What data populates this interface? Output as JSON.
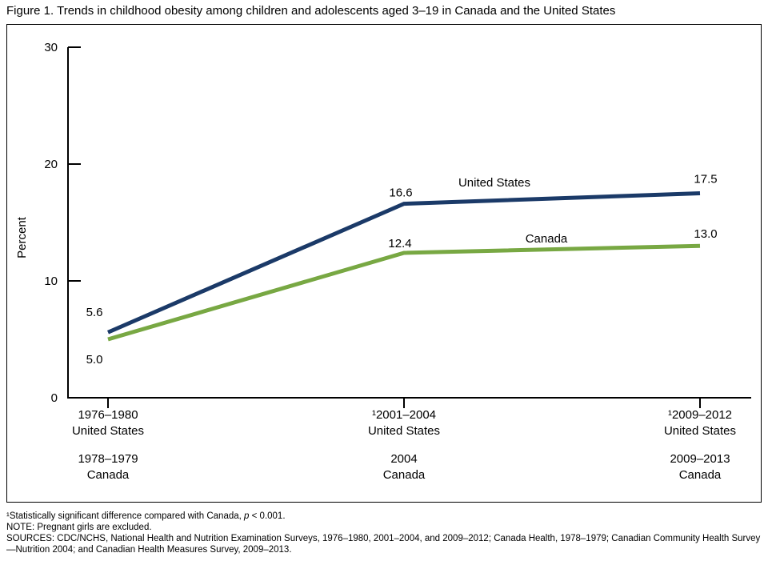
{
  "figure_title": "Figure 1. Trends in childhood obesity among children and adolescents aged 3–19 in Canada and the United States",
  "chart_data": {
    "type": "line",
    "title": "Trends in childhood obesity among children and adolescents aged 3–19 in Canada and the United States",
    "ylabel": "Percent",
    "ylim": [
      0,
      30
    ],
    "yticks": [
      0,
      10,
      20,
      30
    ],
    "grid": false,
    "legend_position": "inline-labels",
    "series": [
      {
        "name": "United States",
        "color": "#1b3a68",
        "values": [
          5.6,
          16.6,
          17.5
        ],
        "point_labels": [
          "5.6",
          "16.6",
          "17.5"
        ]
      },
      {
        "name": "Canada",
        "color": "#78a843",
        "values": [
          5.0,
          12.4,
          13.0
        ],
        "point_labels": [
          "5.0",
          "12.4",
          "13.0"
        ]
      }
    ],
    "x_tick_labels": [
      {
        "us": [
          "1976–1980",
          "United States"
        ],
        "canada": [
          "1978–1979",
          "Canada"
        ]
      },
      {
        "us": [
          "¹2001–2004",
          "United States"
        ],
        "canada": [
          "2004",
          "Canada"
        ]
      },
      {
        "us": [
          "¹2009–2012",
          "United States"
        ],
        "canada": [
          "2009–2013",
          "Canada"
        ]
      }
    ]
  },
  "footnotes": {
    "significance_prefix": "¹Statistically significant difference compared with Canada, ",
    "significance_p": "p",
    "significance_tail": " < 0.001.",
    "note": "NOTE: Pregnant girls are excluded.",
    "sources": "SOURCES: CDC/NCHS, National Health and Nutrition Examination Surveys, 1976–1980, 2001–2004, and 2009–2012; Canada Health, 1978–1979; Canadian Community Health Survey—Nutrition 2004; and Canadian Health Measures Survey, 2009–2013."
  }
}
